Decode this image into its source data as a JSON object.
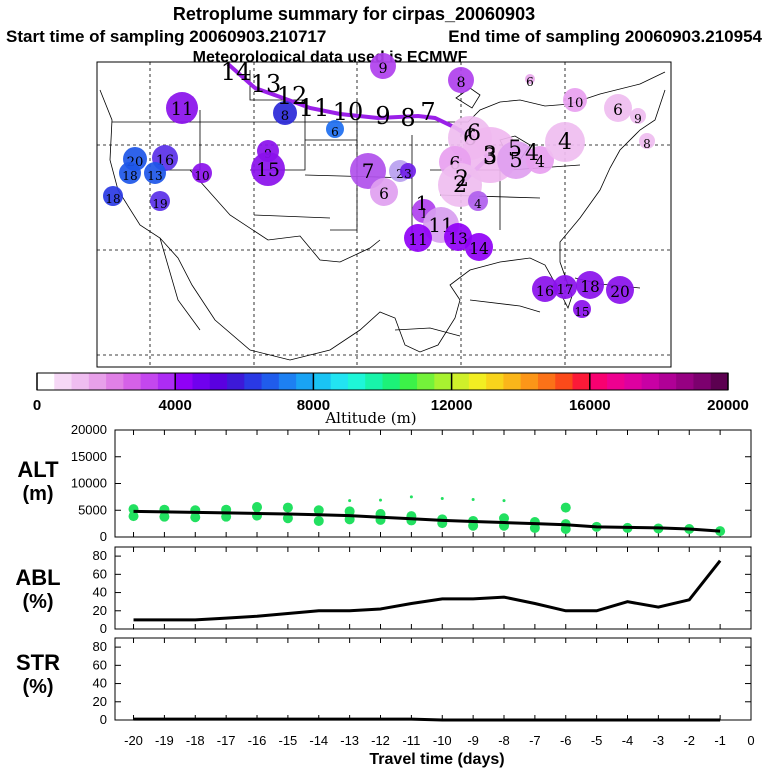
{
  "header": {
    "title": "Retroplume summary for cirpas_20060903",
    "start_label": "Start time of sampling 20060903.210717",
    "end_label": "End time of sampling 20060903.210954",
    "met_label": "Meteorological data used is ECMWF"
  },
  "map": {
    "route_labels": [
      "14",
      "13",
      "12",
      "11",
      "10",
      "9",
      "8",
      "7",
      "6",
      "5",
      "4",
      "3",
      "2",
      "1"
    ],
    "plume_numbers": [
      "1",
      "2",
      "3",
      "4",
      "5",
      "6",
      "7",
      "8",
      "9",
      "10",
      "11",
      "12",
      "13",
      "14",
      "15",
      "16",
      "17",
      "18",
      "19",
      "20"
    ]
  },
  "colorbar": {
    "ticks": [
      "0",
      "4000",
      "8000",
      "12000",
      "16000",
      "20000"
    ],
    "title": "Altitude (m)",
    "colors": [
      "#ffffff",
      "#f6d8f6",
      "#efbdf0",
      "#e8a0ea",
      "#e080e6",
      "#d561e8",
      "#c447ee",
      "#ad2cf4",
      "#9000f6",
      "#7000ee",
      "#5a00e0",
      "#3d19d8",
      "#2a39e4",
      "#205cec",
      "#1d80f2",
      "#19a3f4",
      "#1ac4f4",
      "#22e4f2",
      "#1ef6d8",
      "#18f4aa",
      "#1cf278",
      "#3cf248",
      "#74f23a",
      "#a8f230",
      "#cff02a",
      "#f2ee22",
      "#f8d41c",
      "#fab61a",
      "#fc9618",
      "#fc7218",
      "#fc4a1a",
      "#fc1a38",
      "#f80070",
      "#ee0090",
      "#de00a0",
      "#c800a4",
      "#b00096",
      "#960082",
      "#7c006e",
      "#5c0050"
    ]
  },
  "alt_panel": {
    "label_line1": "ALT",
    "label_line2": "(m)"
  },
  "abl_panel": {
    "label_line1": "ABL",
    "label_line2": "(%)"
  },
  "str_panel": {
    "label_line1": "STR",
    "label_line2": "(%)"
  },
  "chart_data": [
    {
      "type": "line",
      "name": "ALT",
      "ylabel": "ALT (m)",
      "xlim": [
        -20,
        0
      ],
      "ylim": [
        0,
        20000
      ],
      "yticks": [
        "20000",
        "15000",
        "10000",
        "5000",
        "0"
      ],
      "x": [
        -20,
        -19,
        -18,
        -17,
        -16,
        -15,
        -14,
        -13,
        -12,
        -11,
        -10,
        -9,
        -8,
        -7,
        -6,
        -5,
        -4,
        -3,
        -2,
        -1
      ],
      "values": [
        4800,
        4700,
        4600,
        4500,
        4400,
        4300,
        4150,
        4000,
        3700,
        3400,
        3100,
        2900,
        2700,
        2500,
        2300,
        1900,
        1800,
        1700,
        1500,
        1100
      ],
      "scatter_points": [
        [
          -20,
          5200
        ],
        [
          -20,
          3900
        ],
        [
          -19,
          5100
        ],
        [
          -19,
          3800
        ],
        [
          -18,
          5000
        ],
        [
          -18,
          3700
        ],
        [
          -17,
          5100
        ],
        [
          -17,
          3800
        ],
        [
          -16,
          5600
        ],
        [
          -16,
          4000
        ],
        [
          -15,
          5500
        ],
        [
          -15,
          3500
        ],
        [
          -14,
          5000
        ],
        [
          -14,
          3000
        ],
        [
          -13,
          4800
        ],
        [
          -13,
          3300
        ],
        [
          -12,
          4300
        ],
        [
          -12,
          3200
        ],
        [
          -11,
          3900
        ],
        [
          -11,
          3100
        ],
        [
          -10,
          3300
        ],
        [
          -10,
          2600
        ],
        [
          -9,
          3000
        ],
        [
          -9,
          2100
        ],
        [
          -8,
          3500
        ],
        [
          -8,
          2100
        ],
        [
          -7,
          2800
        ],
        [
          -7,
          1700
        ],
        [
          -6,
          2400
        ],
        [
          -6,
          1500
        ],
        [
          -5,
          1900
        ],
        [
          -4,
          1700
        ],
        [
          -3,
          1600
        ],
        [
          -2,
          1500
        ],
        [
          -1,
          1100
        ],
        [
          -13,
          6800
        ],
        [
          -12,
          6900
        ],
        [
          -11,
          7500
        ],
        [
          -10,
          7200
        ],
        [
          -9,
          7000
        ],
        [
          -8,
          6800
        ],
        [
          -6,
          5500
        ]
      ]
    },
    {
      "type": "line",
      "name": "ABL",
      "ylabel": "ABL (%)",
      "xlim": [
        -20,
        0
      ],
      "ylim": [
        0,
        90
      ],
      "yticks": [
        "80",
        "60",
        "40",
        "20",
        "0"
      ],
      "x": [
        -20,
        -19,
        -18,
        -17,
        -16,
        -15,
        -14,
        -13,
        -12,
        -11,
        -10,
        -9,
        -8,
        -7,
        -6,
        -5,
        -4,
        -3,
        -2,
        -1
      ],
      "values": [
        10,
        10,
        10,
        12,
        14,
        17,
        20,
        20,
        22,
        28,
        33,
        33,
        35,
        28,
        20,
        20,
        30,
        24,
        32,
        75
      ]
    },
    {
      "type": "line",
      "name": "STR",
      "ylabel": "STR (%)",
      "xlabel": "Travel time (days)",
      "xlim": [
        -20,
        0
      ],
      "ylim": [
        0,
        90
      ],
      "yticks": [
        "80",
        "60",
        "40",
        "20",
        "0"
      ],
      "xticks": [
        "-20",
        "-19",
        "-18",
        "-17",
        "-16",
        "-15",
        "-14",
        "-13",
        "-12",
        "-11",
        "-10",
        "-9",
        "-8",
        "-7",
        "-6",
        "-5",
        "-4",
        "-3",
        "-2",
        "-1",
        "0"
      ],
      "x": [
        -20,
        -19,
        -18,
        -17,
        -16,
        -15,
        -14,
        -13,
        -12,
        -11,
        -10,
        -9,
        -8,
        -7,
        -6,
        -5,
        -4,
        -3,
        -2,
        -1
      ],
      "values": [
        1,
        1,
        1,
        1,
        1,
        1,
        1,
        1,
        1,
        1,
        0,
        0,
        0,
        0,
        0,
        0,
        0,
        0,
        0,
        0
      ]
    }
  ]
}
